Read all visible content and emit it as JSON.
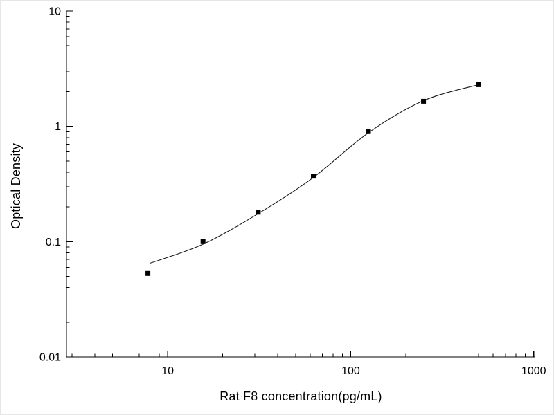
{
  "chart_data": {
    "type": "scatter",
    "title": "",
    "xlabel": "Rat F8 concentration(pg/mL)",
    "ylabel": "Optical Density",
    "xscale": "log",
    "yscale": "log",
    "xlim": [
      2.8,
      1020
    ],
    "ylim": [
      0.01,
      10
    ],
    "x_major_ticks": [
      10,
      100,
      1000
    ],
    "x_tick_labels": [
      "10",
      "100",
      "1000"
    ],
    "y_major_ticks": [
      0.01,
      0.1,
      1,
      10
    ],
    "y_tick_labels": [
      "0.01",
      "0.1",
      "1",
      "10"
    ],
    "grid": "off",
    "legend": "none",
    "marker": "filled-square",
    "series": [
      {
        "name": "standard-points",
        "points": [
          [
            7.8,
            0.053
          ],
          [
            15.6,
            0.1
          ],
          [
            31.25,
            0.18
          ],
          [
            62.5,
            0.37
          ],
          [
            125,
            0.9
          ],
          [
            250,
            1.65
          ],
          [
            500,
            2.3
          ]
        ]
      }
    ],
    "fit_curve_points": [
      [
        8,
        0.065
      ],
      [
        15.6,
        0.095
      ],
      [
        31.25,
        0.175
      ],
      [
        62.5,
        0.36
      ],
      [
        125,
        0.88
      ],
      [
        250,
        1.67
      ],
      [
        500,
        2.3
      ]
    ],
    "colors": {
      "axis": "#000000",
      "marker": "#000000",
      "curve": "#1a1a1a",
      "background": "#ffffff"
    }
  }
}
